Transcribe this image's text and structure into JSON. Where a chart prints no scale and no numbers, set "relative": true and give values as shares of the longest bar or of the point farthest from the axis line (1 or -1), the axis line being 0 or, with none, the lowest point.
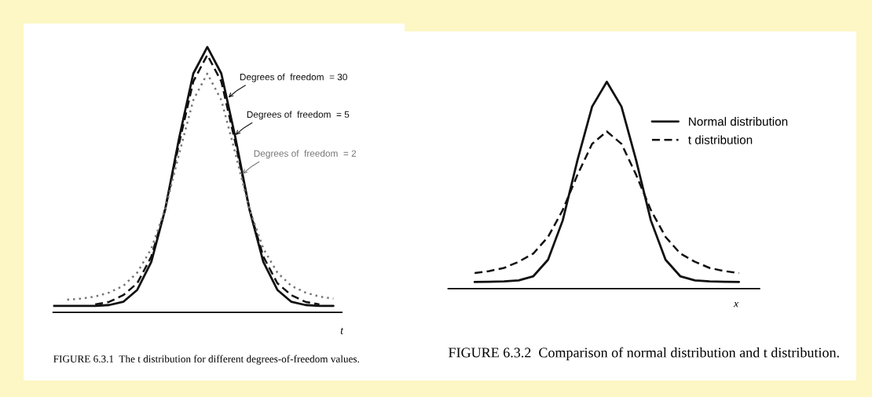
{
  "chart_data": [
    {
      "type": "line",
      "relative": true,
      "title": "FIGURE 6.3.1  The t distribution for different degrees-of-freedom values.",
      "xlabel": "t",
      "tick_labels": false,
      "legend": false,
      "categories": [
        null,
        null,
        null,
        null,
        null,
        null,
        null,
        null,
        null,
        null,
        null,
        null,
        null,
        null,
        null,
        null,
        null,
        null,
        null,
        null,
        null
      ],
      "series": [
        {
          "name": "Degrees of  freedom  = 30",
          "color": "#111111",
          "line_style": "solid",
          "values": [
            0.025,
            0.025,
            0.025,
            0.025,
            0.028,
            0.04,
            0.085,
            0.19,
            0.39,
            0.66,
            0.9,
            1.0,
            0.9,
            0.66,
            0.39,
            0.19,
            0.085,
            0.04,
            0.028,
            0.025,
            0.025
          ]
        },
        {
          "name": "Degrees of  freedom  = 5",
          "color": "#111111",
          "line_style": "dashed",
          "values": [
            null,
            null,
            null,
            0.03,
            0.04,
            0.065,
            0.11,
            0.21,
            0.39,
            0.64,
            0.87,
            0.97,
            0.87,
            0.64,
            0.39,
            0.21,
            0.11,
            0.065,
            0.04,
            0.03,
            null
          ]
        },
        {
          "name": "Degrees of  freedom  = 2",
          "color": "#777777",
          "line_style": "dotted",
          "values": [
            null,
            0.048,
            0.052,
            0.06,
            0.075,
            0.1,
            0.15,
            0.24,
            0.39,
            0.6,
            0.8,
            0.9,
            0.8,
            0.6,
            0.39,
            0.24,
            0.15,
            0.1,
            0.075,
            0.06,
            0.052
          ]
        }
      ]
    },
    {
      "type": "line",
      "relative": true,
      "title": "FIGURE 6.3.2  Comparison of normal distribution and t distribution.",
      "xlabel": "x",
      "tick_labels": false,
      "legend": "top right",
      "categories": [
        null,
        null,
        null,
        null,
        null,
        null,
        null,
        null,
        null,
        null,
        null,
        null,
        null,
        null,
        null,
        null,
        null,
        null,
        null
      ],
      "series": [
        {
          "name": "Normal distribution",
          "color": "#111111",
          "line_style": "solid",
          "values": [
            0.032,
            0.033,
            0.035,
            0.04,
            0.06,
            0.14,
            0.33,
            0.62,
            0.88,
            1.0,
            0.88,
            0.62,
            0.33,
            0.14,
            0.06,
            0.04,
            0.035,
            0.033,
            0.032
          ]
        },
        {
          "name": "t distribution",
          "color": "#111111",
          "line_style": "dashed",
          "values": [
            0.075,
            0.085,
            0.1,
            0.13,
            0.17,
            0.25,
            0.38,
            0.55,
            0.7,
            0.76,
            0.7,
            0.55,
            0.38,
            0.25,
            0.17,
            0.13,
            0.1,
            0.085,
            0.075
          ]
        }
      ]
    }
  ]
}
